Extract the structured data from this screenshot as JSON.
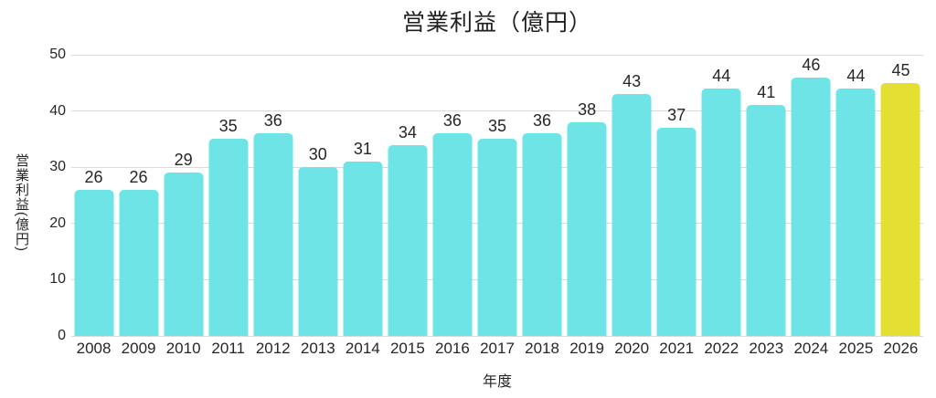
{
  "chart_data": {
    "type": "bar",
    "title": "営業利益（億円）",
    "xlabel": "年度",
    "ylabel": "営業利益(億円)",
    "categories": [
      "2008",
      "2009",
      "2010",
      "2011",
      "2012",
      "2013",
      "2014",
      "2015",
      "2016",
      "2017",
      "2018",
      "2019",
      "2020",
      "2021",
      "2022",
      "2023",
      "2024",
      "2025",
      "2026"
    ],
    "values": [
      26,
      26,
      29,
      35,
      36,
      30,
      31,
      34,
      36,
      35,
      36,
      38,
      43,
      37,
      44,
      41,
      46,
      44,
      45
    ],
    "data_labels_shown": true,
    "ylim": [
      0,
      50
    ],
    "yticks": [
      0,
      10,
      20,
      30,
      40,
      50
    ],
    "grid": true,
    "legend": false,
    "bar_color": "#6FE4E6",
    "highlight_color": "#E3E032",
    "highlight_category": "2026",
    "gridline_color": "#DADADA",
    "text_color": "#262626"
  }
}
